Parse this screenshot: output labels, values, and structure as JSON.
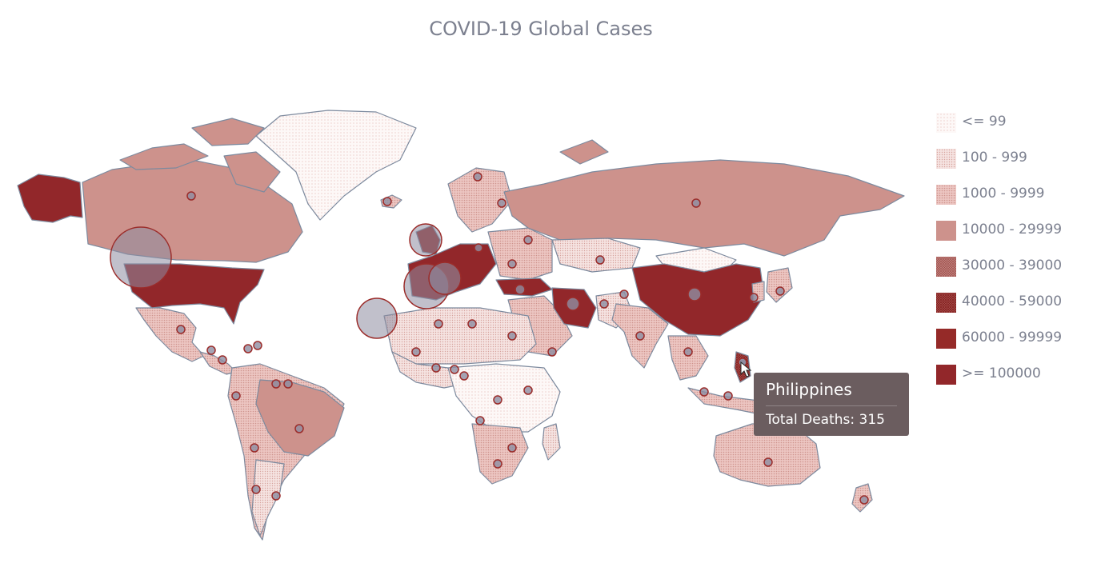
{
  "title": "COVID-19 Global Cases",
  "legend": [
    {
      "label": "<= 99",
      "color": "#fbf3f2",
      "pattern": "dots-light"
    },
    {
      "label": "100 - 999",
      "color": "#f2dcda",
      "pattern": "dots"
    },
    {
      "label": "1000 - 9999",
      "color": "#e6b9b5",
      "pattern": "dots-dense"
    },
    {
      "label": "10000 - 29999",
      "color": "#cd928c",
      "pattern": "solid"
    },
    {
      "label": "30000 - 39000",
      "color": "#b36b66",
      "pattern": "cross"
    },
    {
      "label": "40000 - 59000",
      "color": "#a44845",
      "pattern": "cross-dense"
    },
    {
      "label": "60000 - 99999",
      "color": "#952a28",
      "pattern": "solid"
    },
    {
      "label": ">= 100000",
      "color": "#92272a",
      "pattern": "solid"
    }
  ],
  "tooltip": {
    "title": "Philippines",
    "text": "Total Deaths: 315"
  },
  "colors": {
    "border": "#7d8a9e",
    "bubble_fill": "#8e8da1",
    "bubble_stroke": "#9b2c2a"
  }
}
